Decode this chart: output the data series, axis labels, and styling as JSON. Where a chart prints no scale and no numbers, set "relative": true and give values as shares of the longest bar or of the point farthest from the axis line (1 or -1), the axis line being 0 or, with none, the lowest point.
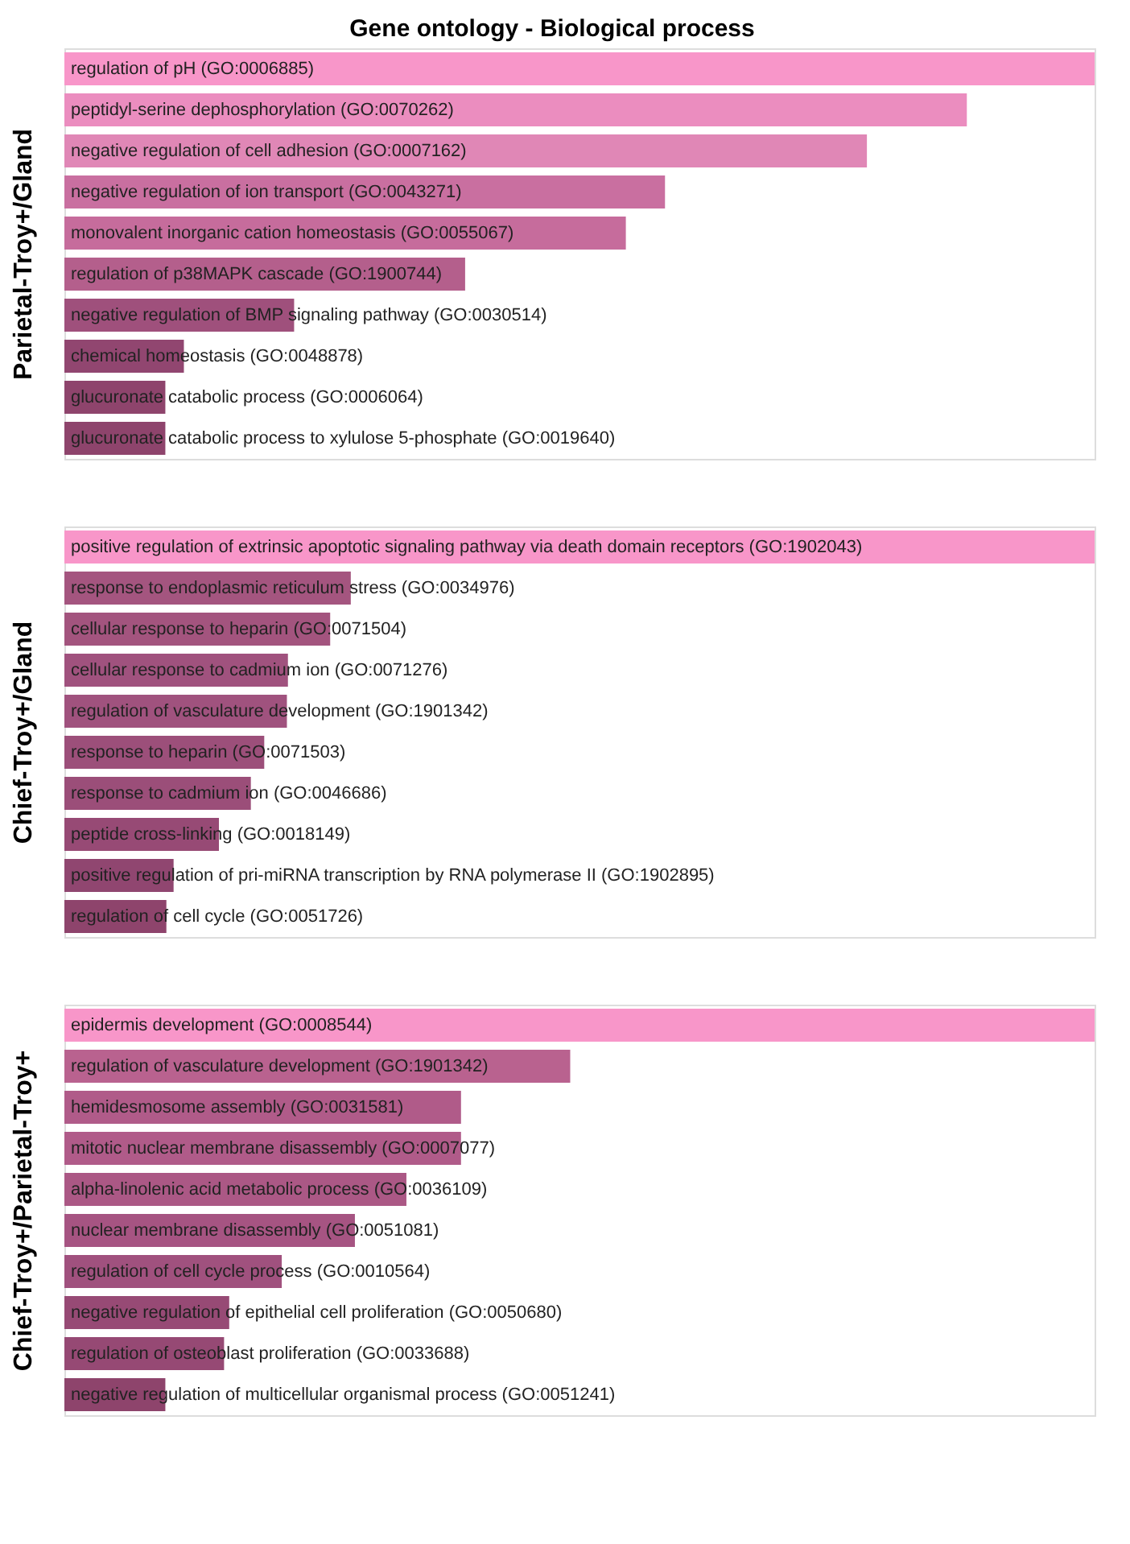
{
  "chart_data": [
    {
      "type": "bar",
      "orientation": "horizontal",
      "relative": true,
      "title": "Gene ontology - Biological process",
      "ylabel": "Parietal-Troy+/Gland",
      "categories": [
        "regulation of pH (GO:0006885)",
        "peptidyl-serine dephosphorylation (GO:0070262)",
        "negative regulation of cell adhesion (GO:0007162)",
        "negative regulation of ion transport (GO:0043271)",
        "monovalent inorganic cation homeostasis (GO:0055067)",
        "regulation of p38MAPK cascade (GO:1900744)",
        "negative regulation of BMP signaling pathway (GO:0030514)",
        "chemical homeostasis (GO:0048878)",
        "glucuronate catabolic process (GO:0006064)",
        "glucuronate catabolic process to xylulose 5-phosphate (GO:0019640)"
      ],
      "values": [
        1,
        0.876,
        0.779,
        0.583,
        0.545,
        0.389,
        0.223,
        0.116,
        0.098,
        0.098
      ],
      "colors": [
        "#f896c9",
        "#eb8dbf",
        "#e087b6",
        "#c96fa0",
        "#c66c9c",
        "#b45f8c",
        "#9f507c",
        "#914670",
        "#8e446c",
        "#8e446c"
      ]
    },
    {
      "type": "bar",
      "orientation": "horizontal",
      "relative": true,
      "ylabel": "Chief-Troy+/Gland",
      "categories": [
        "positive regulation of extrinsic apoptotic signaling pathway via death domain receptors (GO:1902043)",
        "response to endoplasmic reticulum stress (GO:0034976)",
        "cellular response to heparin (GO:0071504)",
        "cellular response to cadmium ion (GO:0071276)",
        "regulation of vasculature development (GO:1901342)",
        "response to heparin (GO:0071503)",
        "response to cadmium ion (GO:0046686)",
        "peptide cross-linking (GO:0018149)",
        "positive regulation of pri-miRNA transcription by RNA polymerase II (GO:1902895)",
        "regulation of cell cycle (GO:0051726)"
      ],
      "values": [
        1,
        0.278,
        0.258,
        0.217,
        0.216,
        0.194,
        0.181,
        0.15,
        0.106,
        0.099
      ],
      "colors": [
        "#f896c9",
        "#a4557f",
        "#a3547e",
        "#a0527e",
        "#a0527e",
        "#9c4f7a",
        "#9b4e79",
        "#974a75",
        "#904670",
        "#8e446c"
      ]
    },
    {
      "type": "bar",
      "orientation": "horizontal",
      "relative": true,
      "ylabel": "Chief-Troy+/Parietal-Troy+",
      "categories": [
        "epidermis development (GO:0008544)",
        "regulation of vasculature development (GO:1901342)",
        "hemidesmosome assembly (GO:0031581)",
        "mitotic nuclear membrane disassembly (GO:0007077)",
        "alpha-linolenic acid metabolic process (GO:0036109)",
        "nuclear membrane disassembly (GO:0051081)",
        "regulation of cell cycle process (GO:0010564)",
        "negative regulation of epithelial cell proliferation (GO:0050680)",
        "regulation of osteoblast proliferation (GO:0033688)",
        "negative regulation of multicellular organismal process (GO:0051241)"
      ],
      "values": [
        1,
        0.491,
        0.385,
        0.385,
        0.332,
        0.282,
        0.211,
        0.16,
        0.155,
        0.098
      ],
      "colors": [
        "#f896c9",
        "#b9628f",
        "#b05b89",
        "#b05b89",
        "#ab5885",
        "#a65482",
        "#a0517e",
        "#974a75",
        "#964974",
        "#8e446c"
      ]
    }
  ]
}
